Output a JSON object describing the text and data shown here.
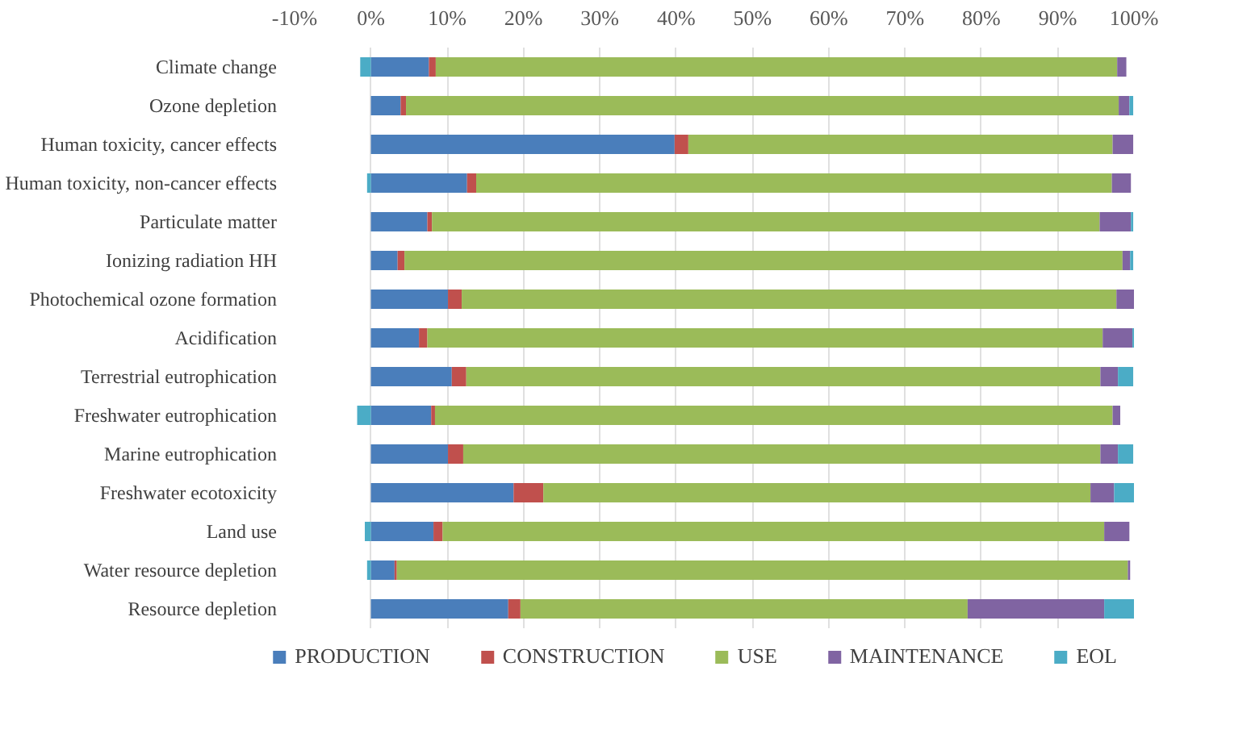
{
  "chart_data": {
    "type": "bar",
    "orientation": "horizontal",
    "stacked": true,
    "categories": [
      "Climate change",
      "Ozone depletion",
      "Human toxicity, cancer effects",
      "Human toxicity, non-cancer effects",
      "Particulate matter",
      "Ionizing radiation HH",
      "Photochemical ozone formation",
      "Acidification",
      "Terrestrial eutrophication",
      "Freshwater eutrophication",
      "Marine eutrophication",
      "Freshwater ecotoxicity",
      "Land use",
      "Water resource depletion",
      "Resource depletion"
    ],
    "series": [
      {
        "name": "PRODUCTION",
        "color": "#4a7ebb",
        "values": [
          7.6,
          3.9,
          39.8,
          12.6,
          7.4,
          3.5,
          10.1,
          6.3,
          10.6,
          7.9,
          10.1,
          18.7,
          8.2,
          3.1,
          18.0
        ]
      },
      {
        "name": "CONSTRUCTION",
        "color": "#c0504d",
        "values": [
          0.9,
          0.7,
          1.8,
          1.2,
          0.6,
          0.9,
          1.8,
          1.1,
          1.9,
          0.5,
          2.0,
          3.9,
          1.2,
          0.3,
          1.6
        ]
      },
      {
        "name": "USE",
        "color": "#9bbb59",
        "values": [
          89.3,
          93.4,
          55.6,
          83.3,
          87.5,
          94.1,
          85.8,
          88.5,
          83.1,
          88.8,
          83.5,
          71.7,
          86.7,
          95.8,
          58.6
        ]
      },
      {
        "name": "MAINTENANCE",
        "color": "#8064a2",
        "values": [
          1.2,
          1.4,
          2.7,
          2.5,
          4.1,
          1.0,
          2.3,
          3.9,
          2.3,
          1.0,
          2.3,
          3.1,
          3.3,
          0.3,
          17.9
        ]
      },
      {
        "name": "EOL",
        "color": "#4bacc6",
        "values": [
          -1.4,
          0.5,
          null,
          -0.5,
          0.3,
          0.4,
          null,
          0.2,
          2.0,
          -1.8,
          2.0,
          2.6,
          -0.8,
          -0.5,
          3.9
        ]
      }
    ],
    "xlim": [
      -10,
      100
    ],
    "xticks": [
      {
        "value": -10,
        "label": "-10%"
      },
      {
        "value": 0,
        "label": "0%"
      },
      {
        "value": 10,
        "label": "10%"
      },
      {
        "value": 20,
        "label": "20%"
      },
      {
        "value": 30,
        "label": "30%"
      },
      {
        "value": 40,
        "label": "40%"
      },
      {
        "value": 50,
        "label": "50%"
      },
      {
        "value": 60,
        "label": "60%"
      },
      {
        "value": 70,
        "label": "70%"
      },
      {
        "value": 80,
        "label": "80%"
      },
      {
        "value": 90,
        "label": "90%"
      },
      {
        "value": 100,
        "label": "100%"
      }
    ],
    "grid": "x",
    "legend": "bottom"
  }
}
